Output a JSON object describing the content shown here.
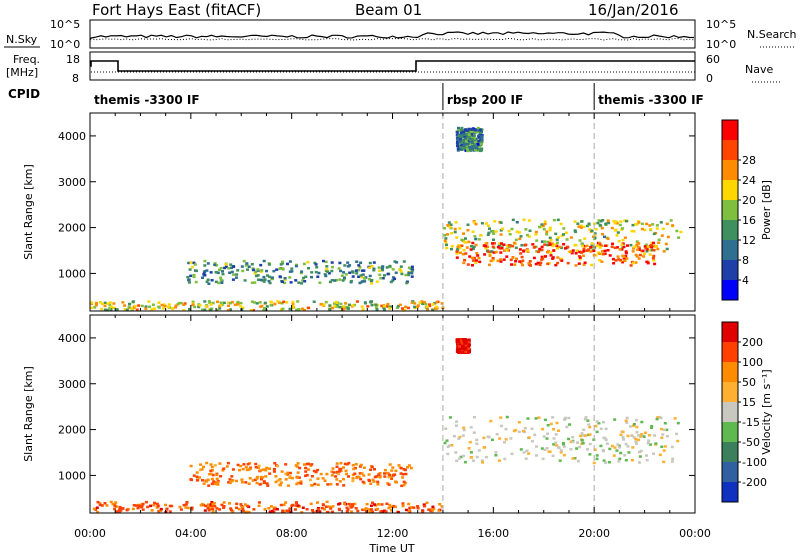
{
  "header": {
    "title": "Fort Hays East (fitACF)",
    "beam": "Beam 01",
    "date": "16/Jan/2016"
  },
  "labels": {
    "nsky": "N.Sky",
    "nsearch": "N.Search",
    "freq": "Freq.",
    "freq_unit": "[MHz]",
    "nave": "Nave",
    "cpid": "CPID"
  },
  "noise_panel": {
    "left_ticks": [
      "10^5",
      "10^0"
    ],
    "right_ticks": [
      "10^5",
      "10^0"
    ]
  },
  "freq_panel": {
    "left_ticks": [
      "18",
      "8"
    ],
    "right_ticks": [
      "60",
      "0"
    ]
  },
  "cpid_segments": [
    {
      "label": "themis -3300 IF",
      "start_hour": 0,
      "end_hour": 14
    },
    {
      "label": "rbsp 200 IF",
      "start_hour": 14,
      "end_hour": 20
    },
    {
      "label": "themis -3300 IF",
      "start_hour": 20,
      "end_hour": 24
    }
  ],
  "time_axis": {
    "label": "Time UT",
    "ticks": [
      "00:00",
      "04:00",
      "08:00",
      "12:00",
      "16:00",
      "20:00",
      "00:00"
    ]
  },
  "chart_data": [
    {
      "type": "heatmap",
      "name": "Power",
      "ylabel": "Slant Range [km]",
      "xlabel": "",
      "xlim": [
        0,
        24
      ],
      "ylim": [
        180,
        4500
      ],
      "yticks": [
        "1000",
        "2000",
        "3000",
        "4000"
      ],
      "colorbar": {
        "label": "Power [dB]",
        "ticks": [
          "4",
          "8",
          "12",
          "16",
          "20",
          "24",
          "28"
        ],
        "colors": [
          "#0000ff",
          "#1f3fa8",
          "#2f6f8f",
          "#3f8f5f",
          "#7fbf3f",
          "#ffd700",
          "#ff8c00",
          "#ff4500",
          "#ff0000"
        ]
      },
      "bands": [
        {
          "t0": 14.0,
          "t1": 23.4,
          "r0": 1500,
          "r1": 2200,
          "level": 0.55
        },
        {
          "t0": 14.5,
          "t1": 22.5,
          "r0": 1200,
          "r1": 1700,
          "level": 0.85
        },
        {
          "t0": 3.8,
          "t1": 12.8,
          "r0": 800,
          "r1": 1300,
          "level": 0.35
        },
        {
          "t0": 0.0,
          "t1": 14.0,
          "r0": 220,
          "r1": 420,
          "level": 0.6
        },
        {
          "t0": 14.5,
          "t1": 15.5,
          "r0": 3700,
          "r1": 4200,
          "level": 0.3
        }
      ]
    },
    {
      "type": "heatmap",
      "name": "Velocity",
      "ylabel": "Slant Range [km]",
      "xlabel": "Time UT",
      "xlim": [
        0,
        24
      ],
      "ylim": [
        180,
        4500
      ],
      "yticks": [
        "1000",
        "2000",
        "3000",
        "4000"
      ],
      "colorbar": {
        "label": "Velocity [m s⁻¹]",
        "ticks": [
          "200",
          "100",
          "50",
          "15",
          "-15",
          "-50",
          "-100",
          "-200"
        ],
        "colors": [
          "#1030c0",
          "#3060a0",
          "#3c7f5c",
          "#5fb850",
          "#c8c8c0",
          "#ffb030",
          "#ff8c00",
          "#ff4000",
          "#e00000"
        ]
      },
      "bands": [
        {
          "t0": 14.0,
          "t1": 23.4,
          "r0": 1300,
          "r1": 2300,
          "level": 0.0
        },
        {
          "t0": 3.8,
          "t1": 12.8,
          "r0": 800,
          "r1": 1300,
          "level": -0.6
        },
        {
          "t0": 0.0,
          "t1": 14.0,
          "r0": 220,
          "r1": 450,
          "level": -0.7
        },
        {
          "t0": 14.5,
          "t1": 15.0,
          "r0": 3700,
          "r1": 4000,
          "level": -1.0
        }
      ]
    }
  ]
}
